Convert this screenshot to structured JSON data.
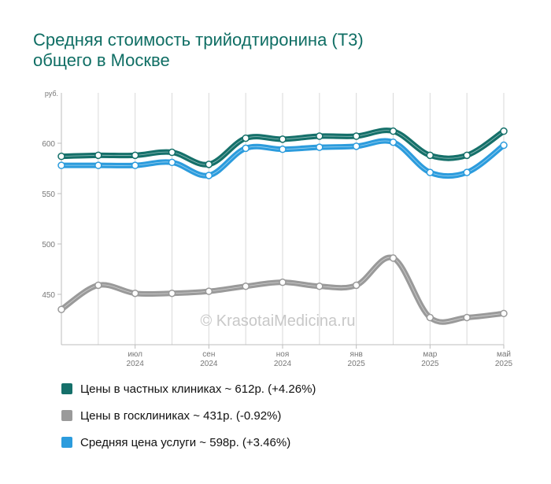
{
  "title_lines": [
    "Средняя стоимость трийодтиронина (Т3)",
    "общего в Москве"
  ],
  "watermark": "© KrasotaiMedicina.ru",
  "colors": {
    "private": "#15706a",
    "public": "#9a9a9a",
    "average": "#2c9cdd",
    "title": "#0f6e64"
  },
  "chart_data": {
    "type": "line",
    "title": "Средняя стоимость трийодтиронина (Т3) общего в Москве",
    "ylabel": "руб.",
    "ylim": [
      400,
      650
    ],
    "yticks": [
      450,
      500,
      550,
      600
    ],
    "grid": true,
    "x": [
      "2024-05",
      "2024-06",
      "2024-07",
      "2024-08",
      "2024-09",
      "2024-10",
      "2024-11",
      "2024-12",
      "2025-01",
      "2025-02",
      "2025-03",
      "2025-04",
      "2025-05"
    ],
    "xticks": [
      {
        "month": "июл",
        "year": "2024"
      },
      {
        "month": "сен",
        "year": "2024"
      },
      {
        "month": "ноя",
        "year": "2024"
      },
      {
        "month": "янв",
        "year": "2025"
      },
      {
        "month": "мар",
        "year": "2025"
      },
      {
        "month": "май",
        "year": "2025"
      }
    ],
    "series": [
      {
        "name": "Цены в частных клиниках",
        "color": "#15706a",
        "values": [
          587,
          588,
          588,
          591,
          579,
          605,
          604,
          607,
          607,
          612,
          588,
          588,
          612
        ]
      },
      {
        "name": "Цены в госклиниках",
        "color": "#9a9a9a",
        "values": [
          435,
          459,
          451,
          451,
          453,
          458,
          462,
          458,
          459,
          486,
          427,
          427,
          431
        ]
      },
      {
        "name": "Средняя цена услуги",
        "color": "#2c9cdd",
        "values": [
          578,
          578,
          578,
          581,
          568,
          595,
          594,
          596,
          597,
          601,
          571,
          571,
          598
        ]
      }
    ]
  },
  "legend": [
    {
      "label": "Цены в частных клиниках ~ 612р. (+4.26%)",
      "color": "#15706a"
    },
    {
      "label": "Цены в госклиниках ~ 431р. (-0.92%)",
      "color": "#9a9a9a"
    },
    {
      "label": "Средняя цена услуги ~ 598р. (+3.46%)",
      "color": "#2c9cdd"
    }
  ]
}
